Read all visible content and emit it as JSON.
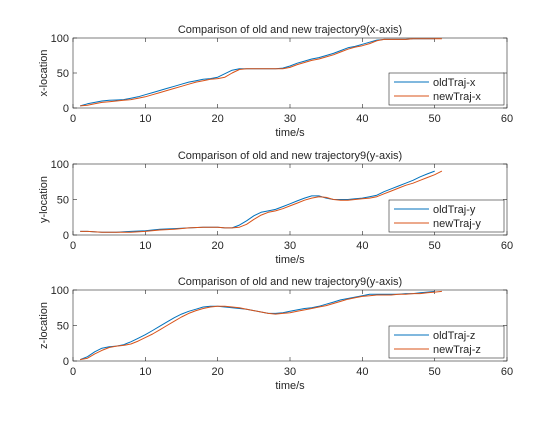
{
  "colors": {
    "old": "#0072BD",
    "new": "#D95319",
    "axis": "#262626",
    "background": "#ffffff"
  },
  "chart_data": [
    {
      "type": "line",
      "title": "Comparison of old and new trajectory9(x-axis)",
      "xlabel": "time/s",
      "ylabel": "x-location",
      "xlim": [
        0,
        60
      ],
      "ylim": [
        0,
        100
      ],
      "xticks": [
        "0",
        "10",
        "20",
        "30",
        "40",
        "50",
        "60"
      ],
      "yticks": [
        "0",
        "50",
        "100"
      ],
      "grid": false,
      "legend": "bottom-right",
      "series": [
        {
          "name": "oldTraj-x",
          "x": [
            1,
            2,
            3,
            4,
            5,
            6,
            7,
            8,
            9,
            10,
            11,
            12,
            13,
            14,
            15,
            16,
            17,
            18,
            19,
            20,
            21,
            22,
            23,
            24,
            25,
            26,
            27,
            28,
            29,
            30,
            31,
            32,
            33,
            34,
            35,
            36,
            37,
            38,
            39,
            40,
            41,
            42,
            43,
            44,
            45,
            46,
            47,
            48,
            49,
            50
          ],
          "y": [
            3,
            6,
            8,
            10,
            11,
            11.5,
            12,
            14,
            16,
            19,
            22,
            25,
            28,
            31,
            34,
            37,
            39,
            41,
            42,
            44,
            49,
            54,
            56,
            56,
            56,
            56,
            56,
            56,
            57,
            60,
            64,
            67,
            70,
            72,
            75,
            78,
            82,
            86,
            88,
            91,
            94,
            97,
            98,
            98,
            98,
            98,
            99,
            99,
            99,
            99
          ]
        },
        {
          "name": "newTraj-x",
          "x": [
            1,
            2,
            3,
            4,
            5,
            6,
            7,
            8,
            9,
            10,
            11,
            12,
            13,
            14,
            15,
            16,
            17,
            18,
            19,
            20,
            21,
            22,
            23,
            24,
            25,
            26,
            27,
            28,
            29,
            30,
            31,
            32,
            33,
            34,
            35,
            36,
            37,
            38,
            39,
            40,
            41,
            42,
            43,
            44,
            45,
            46,
            47,
            48,
            49,
            50,
            51
          ],
          "y": [
            3,
            4,
            6,
            8,
            9,
            10,
            11,
            12,
            14,
            16,
            19,
            22,
            25,
            28,
            31,
            34,
            37,
            39,
            41,
            42,
            44,
            50,
            55,
            56,
            56,
            56,
            56,
            56,
            56,
            58,
            62,
            65,
            68,
            70,
            73,
            76,
            80,
            84,
            87,
            89,
            92,
            96,
            98,
            98,
            98,
            98,
            99,
            99,
            99,
            99,
            99
          ]
        }
      ]
    },
    {
      "type": "line",
      "title": "Comparison of old and new trajectory9(y-axis)",
      "xlabel": "time/s",
      "ylabel": "y-location",
      "xlim": [
        0,
        60
      ],
      "ylim": [
        0,
        100
      ],
      "xticks": [
        "0",
        "10",
        "20",
        "30",
        "40",
        "50",
        "60"
      ],
      "yticks": [
        "0",
        "50",
        "100"
      ],
      "grid": false,
      "legend": "bottom-right",
      "series": [
        {
          "name": "oldTraj-y",
          "x": [
            1,
            2,
            4,
            6,
            8,
            10,
            12,
            14,
            16,
            18,
            20,
            21,
            22,
            23,
            24,
            25,
            26,
            27,
            28,
            29,
            30,
            31,
            32,
            33,
            34,
            35,
            36,
            37,
            38,
            39,
            40,
            41,
            42,
            43,
            44,
            45,
            46,
            47,
            48,
            49,
            50
          ],
          "y": [
            5,
            5,
            4,
            4,
            5,
            6,
            8,
            9,
            10,
            11,
            11,
            10,
            10,
            14,
            20,
            27,
            32,
            34,
            36,
            40,
            44,
            48,
            52,
            55,
            55,
            52,
            50,
            50,
            50,
            51,
            52,
            54,
            56,
            61,
            65,
            69,
            73,
            77,
            82,
            86,
            90
          ]
        },
        {
          "name": "newTraj-y",
          "x": [
            1,
            2,
            4,
            6,
            8,
            10,
            12,
            14,
            16,
            18,
            20,
            21,
            22,
            23,
            24,
            25,
            26,
            27,
            28,
            29,
            30,
            31,
            32,
            33,
            34,
            35,
            36,
            37,
            38,
            39,
            40,
            41,
            42,
            43,
            44,
            45,
            46,
            47,
            48,
            49,
            50,
            51
          ],
          "y": [
            5,
            5,
            4,
            4,
            4,
            5,
            7,
            8,
            10,
            11,
            11,
            10,
            10,
            11,
            15,
            22,
            28,
            32,
            34,
            37,
            41,
            45,
            49,
            52,
            54,
            53,
            50,
            49,
            49,
            50,
            51,
            52,
            54,
            58,
            62,
            66,
            70,
            73,
            77,
            81,
            85,
            90
          ]
        }
      ]
    },
    {
      "type": "line",
      "title": "Comparison of old and new trajectory9(y-axis)",
      "xlabel": "time/s",
      "ylabel": "z-location",
      "xlim": [
        0,
        60
      ],
      "ylim": [
        0,
        100
      ],
      "xticks": [
        "0",
        "10",
        "20",
        "30",
        "40",
        "50",
        "60"
      ],
      "yticks": [
        "0",
        "50",
        "100"
      ],
      "grid": false,
      "legend": "bottom-right",
      "series": [
        {
          "name": "oldTraj-z",
          "x": [
            1,
            2,
            3,
            4,
            5,
            6,
            7,
            8,
            9,
            10,
            11,
            12,
            13,
            14,
            15,
            16,
            17,
            18,
            19,
            20,
            21,
            22,
            23,
            24,
            25,
            26,
            27,
            28,
            29,
            30,
            31,
            32,
            33,
            34,
            35,
            36,
            37,
            38,
            39,
            40,
            41,
            42,
            43,
            44,
            45,
            46,
            47,
            48,
            49,
            50
          ],
          "y": [
            2,
            6,
            13,
            18,
            20,
            21,
            23,
            27,
            32,
            37,
            43,
            49,
            55,
            61,
            66,
            70,
            73,
            76,
            77,
            77,
            76,
            75,
            74,
            73,
            71,
            69,
            67,
            67,
            68,
            70,
            72,
            74,
            75,
            77,
            80,
            83,
            86,
            88,
            90,
            92,
            94,
            94,
            94,
            94,
            94,
            95,
            95,
            96,
            97,
            98
          ]
        },
        {
          "name": "newTraj-z",
          "x": [
            1,
            2,
            3,
            4,
            5,
            6,
            7,
            8,
            9,
            10,
            11,
            12,
            13,
            14,
            15,
            16,
            17,
            18,
            19,
            20,
            21,
            22,
            23,
            24,
            25,
            26,
            27,
            28,
            29,
            30,
            31,
            32,
            33,
            34,
            35,
            36,
            37,
            38,
            39,
            40,
            41,
            42,
            43,
            44,
            45,
            46,
            47,
            48,
            49,
            50,
            51
          ],
          "y": [
            2,
            4,
            10,
            15,
            19,
            21,
            22,
            24,
            28,
            33,
            38,
            44,
            50,
            56,
            62,
            67,
            71,
            74,
            76,
            77,
            77,
            76,
            75,
            73,
            71,
            69,
            67,
            66,
            67,
            68,
            70,
            72,
            74,
            76,
            78,
            81,
            84,
            87,
            89,
            91,
            92,
            93,
            93,
            93,
            94,
            94,
            95,
            95,
            96,
            97,
            98
          ]
        }
      ]
    }
  ]
}
